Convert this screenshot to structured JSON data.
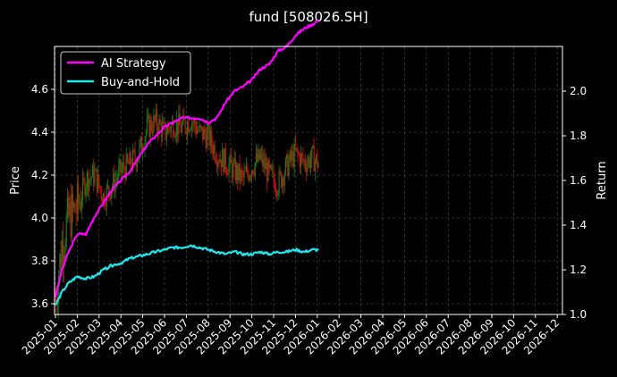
{
  "chart_data": {
    "type": "line",
    "title": "fund [508026.SH]",
    "ylabel_left": "Price",
    "ylabel_right": "Return",
    "ylim_left": [
      3.55,
      4.8
    ],
    "ylim_right": [
      1.0,
      2.2
    ],
    "yticks_left": [
      "3.6",
      "3.8",
      "4.0",
      "4.2",
      "4.4",
      "4.6"
    ],
    "yticks_right": [
      "1.0",
      "1.2",
      "1.4",
      "1.6",
      "1.8",
      "2.0"
    ],
    "xticks": [
      "2025-01",
      "2025-02",
      "2025-03",
      "2025-04",
      "2025-05",
      "2025-06",
      "2025-07",
      "2025-08",
      "2025-09",
      "2025-10",
      "2025-11",
      "2025-12",
      "2026-01",
      "2026-02",
      "2026-03",
      "2026-04",
      "2026-05",
      "2026-06",
      "2026-07",
      "2026-08",
      "2026-09",
      "2026-10",
      "2026-11",
      "2026-12"
    ],
    "grid": true,
    "legend_position": "top-left",
    "colors": {
      "ai": "#ff00ff",
      "bh": "#22e5ee",
      "up": "#1a7a1a",
      "down": "#cc1111"
    },
    "series": [
      {
        "name": "AI Strategy",
        "axis": "right",
        "x": [
          0,
          0.3,
          0.6,
          1.0,
          1.4,
          1.8,
          2.2,
          2.6,
          3.0,
          3.4,
          3.8,
          4.2,
          4.6,
          5.0,
          5.4,
          5.8,
          6.2,
          6.6,
          7.0,
          7.4,
          7.8,
          8.2,
          8.6,
          9.0,
          9.4,
          9.8,
          10.2,
          10.6,
          11.0,
          11.4,
          11.8,
          12.1
        ],
        "values": [
          1.08,
          1.2,
          1.28,
          1.36,
          1.36,
          1.44,
          1.5,
          1.56,
          1.6,
          1.64,
          1.7,
          1.76,
          1.8,
          1.84,
          1.86,
          1.88,
          1.88,
          1.88,
          1.86,
          1.88,
          1.95,
          2.0,
          2.02,
          2.05,
          2.1,
          2.12,
          2.18,
          2.2,
          2.25,
          2.28,
          2.3,
          2.32
        ]
      },
      {
        "name": "Buy-and-Hold",
        "axis": "right",
        "x": [
          0,
          0.3,
          0.6,
          1.0,
          1.4,
          1.8,
          2.2,
          2.6,
          3.0,
          3.4,
          3.8,
          4.2,
          4.6,
          5.0,
          5.4,
          5.8,
          6.2,
          6.6,
          7.0,
          7.4,
          7.8,
          8.2,
          8.6,
          9.0,
          9.4,
          9.8,
          10.2,
          10.6,
          11.0,
          11.4,
          11.8,
          12.1
        ],
        "values": [
          1.04,
          1.1,
          1.14,
          1.17,
          1.16,
          1.17,
          1.2,
          1.22,
          1.23,
          1.25,
          1.26,
          1.27,
          1.28,
          1.29,
          1.3,
          1.3,
          1.31,
          1.3,
          1.29,
          1.28,
          1.27,
          1.28,
          1.27,
          1.27,
          1.28,
          1.27,
          1.28,
          1.28,
          1.29,
          1.28,
          1.29,
          1.29
        ]
      },
      {
        "name": "",
        "type": "candlestick",
        "axis": "left",
        "x": [
          0,
          0.3,
          0.6,
          1.0,
          1.4,
          1.8,
          2.2,
          2.6,
          3.0,
          3.4,
          3.8,
          4.2,
          4.6,
          5.0,
          5.4,
          5.8,
          6.2,
          6.6,
          7.0,
          7.4,
          7.8,
          8.2,
          8.6,
          9.0,
          9.4,
          9.8,
          10.2,
          10.6,
          11.0,
          11.4,
          11.8,
          12.1
        ],
        "values": [
          3.62,
          3.88,
          4.0,
          4.05,
          4.18,
          4.2,
          4.1,
          4.15,
          4.22,
          4.25,
          4.3,
          4.42,
          4.45,
          4.4,
          4.44,
          4.42,
          4.46,
          4.4,
          4.38,
          4.3,
          4.26,
          4.22,
          4.18,
          4.24,
          4.28,
          4.2,
          4.16,
          4.24,
          4.3,
          4.26,
          4.28,
          4.25
        ]
      }
    ]
  },
  "legend": {
    "ai_label": "AI Strategy",
    "bh_label": "Buy-and-Hold"
  }
}
